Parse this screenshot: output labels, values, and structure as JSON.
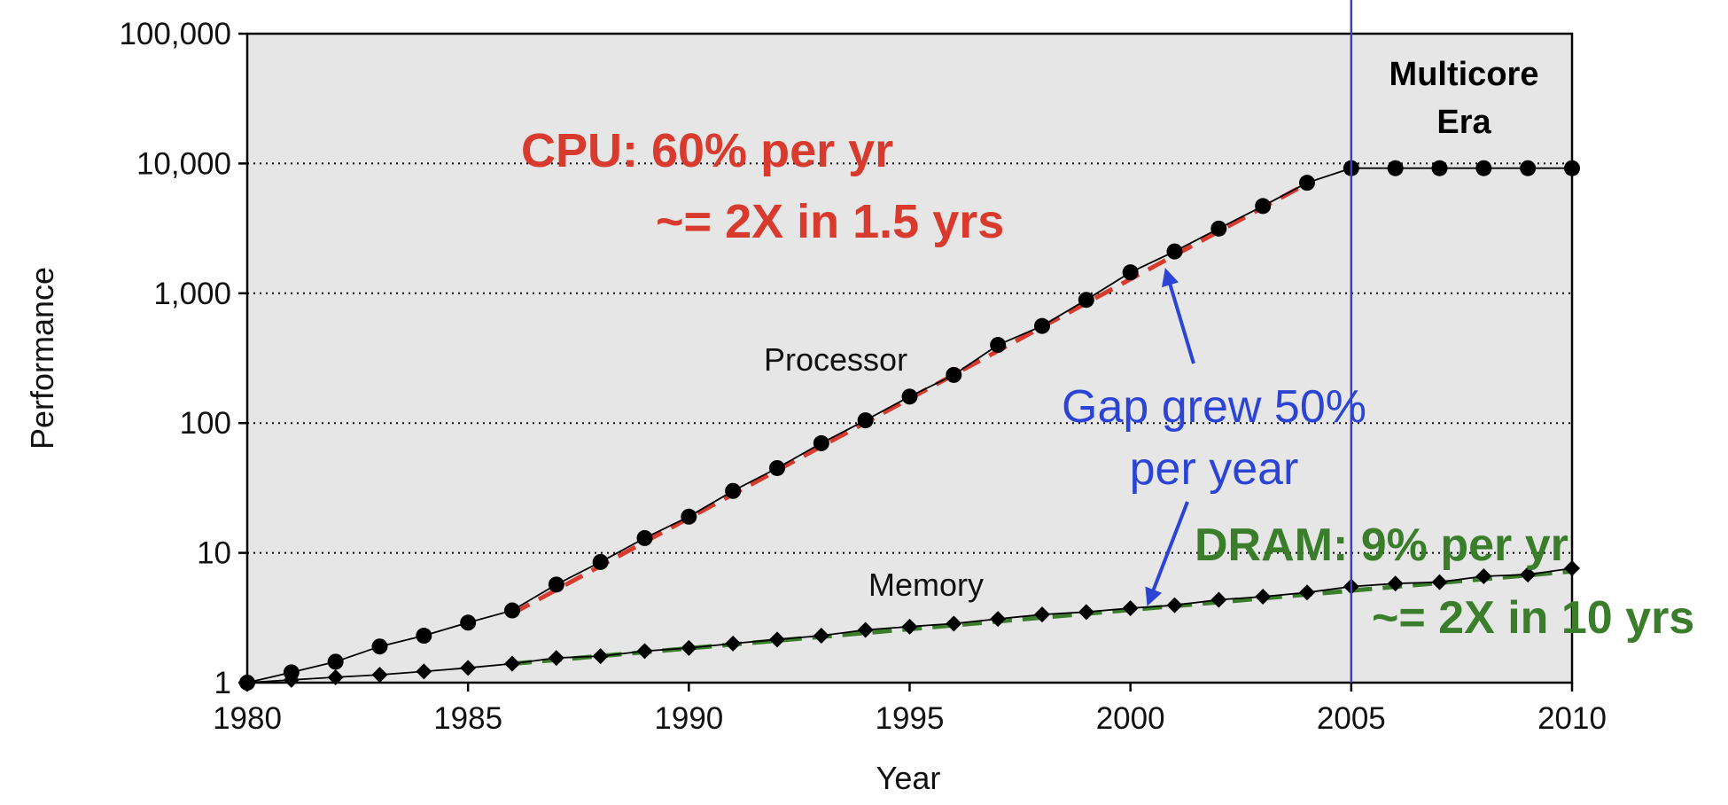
{
  "chart_data": {
    "type": "line",
    "title": "",
    "xlabel": "Year",
    "ylabel": "Performance",
    "xlim": [
      1980,
      2010
    ],
    "ylim": [
      1,
      100000
    ],
    "yscale": "log",
    "grid": "horizontal-dotted",
    "legend": "none",
    "x_ticks": [
      1980,
      1985,
      1990,
      1995,
      2000,
      2005,
      2010
    ],
    "x_tick_labels": [
      "1980",
      "1985",
      "1990",
      "1995",
      "2000",
      "2005",
      "2010"
    ],
    "y_ticks": [
      1,
      10,
      100,
      1000,
      10000,
      100000
    ],
    "y_tick_labels": [
      "1",
      "10",
      "100",
      "1,000",
      "10,000",
      "100,000"
    ],
    "series": [
      {
        "name": "Processor",
        "marker": "circle",
        "color": "#000000",
        "x": [
          1980,
          1981,
          1982,
          1983,
          1984,
          1985,
          1986,
          1987,
          1988,
          1989,
          1990,
          1991,
          1992,
          1993,
          1994,
          1995,
          1996,
          1997,
          1998,
          1999,
          2000,
          2001,
          2002,
          2003,
          2004,
          2005,
          2006,
          2007,
          2008,
          2009,
          2010
        ],
        "values": [
          1,
          1.2,
          1.45,
          1.9,
          2.3,
          2.9,
          3.6,
          5.7,
          8.5,
          13,
          19,
          30,
          45,
          70,
          105,
          160,
          235,
          400,
          560,
          890,
          1450,
          2100,
          3150,
          4700,
          7100,
          9200,
          9200,
          9200,
          9200,
          9200,
          9200
        ]
      },
      {
        "name": "Memory",
        "marker": "diamond",
        "color": "#000000",
        "x": [
          1980,
          1981,
          1982,
          1983,
          1984,
          1985,
          1986,
          1987,
          1988,
          1989,
          1990,
          1991,
          1992,
          1993,
          1994,
          1995,
          1996,
          1997,
          1998,
          1999,
          2000,
          2001,
          2002,
          2003,
          2004,
          2005,
          2006,
          2007,
          2008,
          2009,
          2010
        ],
        "values": [
          1,
          1.05,
          1.1,
          1.15,
          1.22,
          1.3,
          1.4,
          1.55,
          1.6,
          1.75,
          1.85,
          2.0,
          2.15,
          2.3,
          2.55,
          2.7,
          2.85,
          3.1,
          3.35,
          3.5,
          3.75,
          3.95,
          4.35,
          4.6,
          4.95,
          5.5,
          5.8,
          5.95,
          6.6,
          6.8,
          7.6
        ]
      }
    ],
    "trendlines": [
      {
        "name": "cpu-trend",
        "color": "#d93a2e",
        "x": [
          1986,
          2004
        ],
        "values": [
          3.4,
          7000
        ]
      },
      {
        "name": "dram-trend",
        "color": "#3a7d2a",
        "x": [
          1986,
          2010
        ],
        "values": [
          1.4,
          7.2
        ]
      }
    ],
    "vertical_marker": {
      "x": 2005,
      "color": "#3b3fc4"
    },
    "annotations": {
      "processor_label": "Processor",
      "memory_label": "Memory",
      "cpu_line1": "CPU: 60% per yr",
      "cpu_line2": "~= 2X in 1.5 yrs",
      "gap_line1": "Gap grew 50%",
      "gap_line2": "per year",
      "dram_line1": "DRAM: 9% per yr",
      "dram_line2": "~= 2X in 10 yrs",
      "multicore_line1": "Multicore",
      "multicore_line2": "Era"
    },
    "colors": {
      "cpu": "#d93a2e",
      "gap": "#2b44d6",
      "dram": "#3a7d2a",
      "plot_bg": "#e6e6e6"
    }
  }
}
